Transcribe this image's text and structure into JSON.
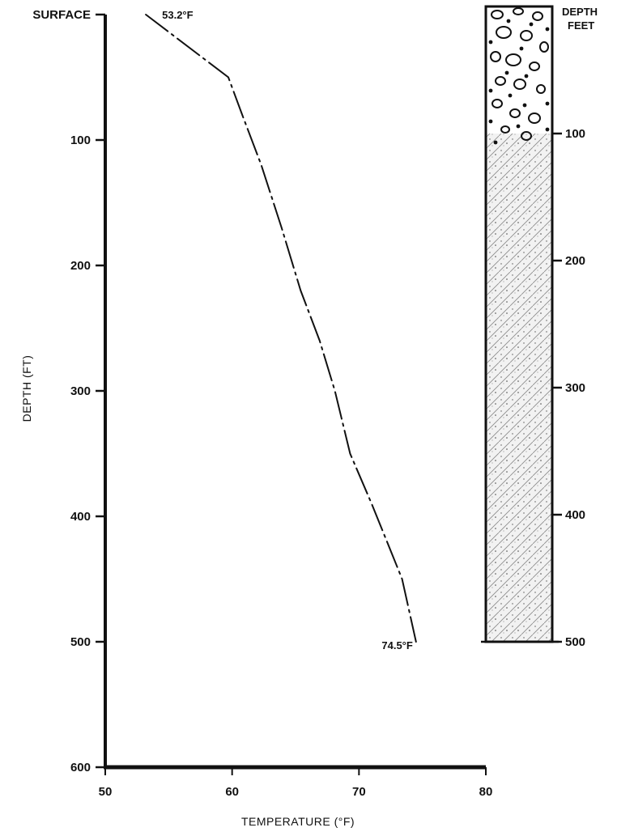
{
  "chart_data": {
    "type": "line",
    "xlabel": "TEMPERATURE (°F)",
    "ylabel": "DEPTH (FT)",
    "xlim": [
      50,
      80
    ],
    "ylim": [
      0,
      600
    ],
    "y_inverted": true,
    "x_ticks": [
      50,
      60,
      70,
      80
    ],
    "y_ticks": [
      "SURFACE",
      "100",
      "200",
      "300",
      "400",
      "500",
      "600"
    ],
    "y_tick_values": [
      0,
      100,
      200,
      300,
      400,
      500,
      600
    ],
    "line_style": "dash-dot",
    "series": [
      {
        "x": [
          53.2,
          59.7,
          60.8,
          62.3,
          63.9,
          65.4,
          66.9,
          68.1,
          69.3,
          71.0,
          72.6,
          73.4,
          74.5
        ],
        "y": [
          0,
          50,
          80,
          120,
          170,
          220,
          260,
          300,
          350,
          390,
          430,
          450,
          500
        ]
      }
    ],
    "annotations": [
      {
        "text": "53.2°F",
        "x": 53.2,
        "y": 0
      },
      {
        "text": "74.5°F",
        "x": 74.5,
        "y": 500
      }
    ]
  },
  "lithology_column": {
    "title_line1": "DEPTH",
    "title_line2": "FEET",
    "ticks": [
      100,
      200,
      300,
      400,
      500
    ],
    "bottom": 500,
    "layers": [
      {
        "from": 0,
        "to": 100,
        "pattern": "gravel"
      },
      {
        "from": 100,
        "to": 500,
        "pattern": "sand"
      }
    ]
  }
}
